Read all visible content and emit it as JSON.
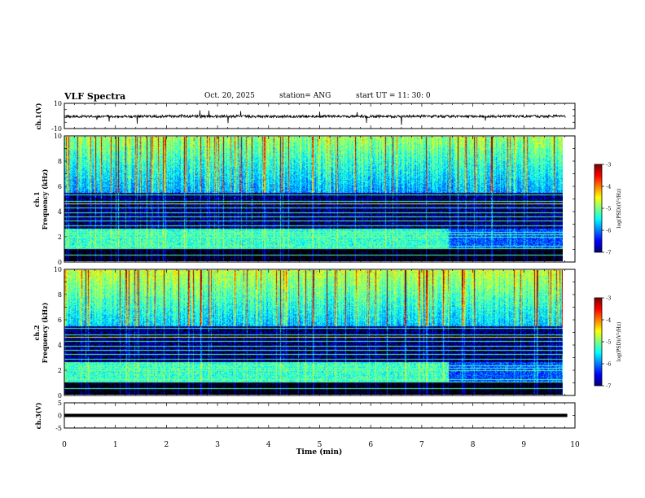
{
  "header": {
    "title": "VLF Spectra",
    "date": "Oct. 20, 2025",
    "station": "station= ANG",
    "start": "start UT = 11: 30: 0"
  },
  "colors": {
    "background": "#ffffff",
    "axis": "#000000",
    "trace": "#000000"
  },
  "chart_data": [
    {
      "type": "line",
      "ylabel": "ch.1(V)",
      "ylim": [
        -10,
        10
      ],
      "yticks": [
        "10",
        "-10"
      ],
      "xlim": [
        0,
        10
      ],
      "baseline": 0,
      "note": "noisy trace near 0 V from 0 to ~9.8 min"
    },
    {
      "type": "heatmap",
      "ylabel_line1": "ch.1",
      "ylabel_line2": "Frequency (kHz)",
      "ylim": [
        0,
        10
      ],
      "yticks": [
        "0",
        "2",
        "4",
        "6",
        "8",
        "10"
      ],
      "xlim": [
        0,
        10
      ],
      "colorbar": {
        "label": "log(PSD)(V²/Hz)",
        "range": [
          -7,
          -3
        ],
        "ticks": [
          "-3",
          "-4",
          "-5",
          "-6",
          "-7"
        ]
      }
    },
    {
      "type": "heatmap",
      "ylabel_line1": "ch.2",
      "ylabel_line2": "Frequency (kHz)",
      "ylim": [
        0,
        10
      ],
      "yticks": [
        "0",
        "2",
        "4",
        "6",
        "8",
        "10"
      ],
      "xlim": [
        0,
        10
      ],
      "colorbar": {
        "label": "log(PSD)(V²/Hz)",
        "range": [
          -7,
          -3
        ],
        "ticks": [
          "-3",
          "-4",
          "-5",
          "-6",
          "-7"
        ]
      }
    },
    {
      "type": "line",
      "ylabel": "ch.3(V)",
      "ylim": [
        -5,
        5
      ],
      "yticks": [
        "5",
        "0",
        "-5"
      ],
      "xlim": [
        0,
        10
      ],
      "baseline": 0,
      "note": "flat thick trace at 0 V"
    }
  ],
  "xaxis": {
    "label": "Time (min)",
    "ticks": [
      "0",
      "1",
      "2",
      "3",
      "4",
      "5",
      "6",
      "7",
      "8",
      "9",
      "10"
    ]
  }
}
